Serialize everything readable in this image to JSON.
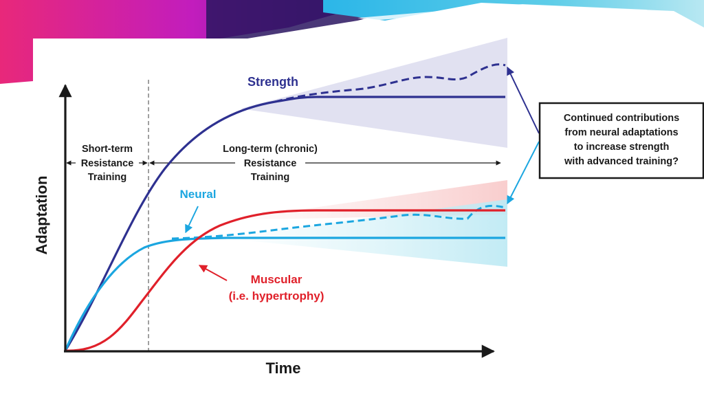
{
  "colors": {
    "strength": "#2e3190",
    "neural": "#1ba6e0",
    "muscular": "#e0202a",
    "axis": "#1a1a1a",
    "strength_band": "#dcdcef",
    "red_band": "#f8d2d2",
    "cyan_band": "#cdeff6",
    "header_magenta": "#e0278f",
    "header_cyan": "#18a8dc"
  },
  "axes": {
    "x_label": "Time",
    "y_label": "Adaptation"
  },
  "phases": {
    "short_term": [
      "Short-term",
      "Resistance",
      "Training"
    ],
    "long_term": [
      "Long-term (chronic)",
      "Resistance",
      "Training"
    ]
  },
  "curves": {
    "strength": "Strength",
    "neural": "Neural",
    "muscular_line1": "Muscular",
    "muscular_line2": "(i.e. hypertrophy)"
  },
  "callout": {
    "lines": [
      "Continued contributions",
      "from neural adaptations",
      "to increase strength",
      "with advanced training?"
    ]
  }
}
